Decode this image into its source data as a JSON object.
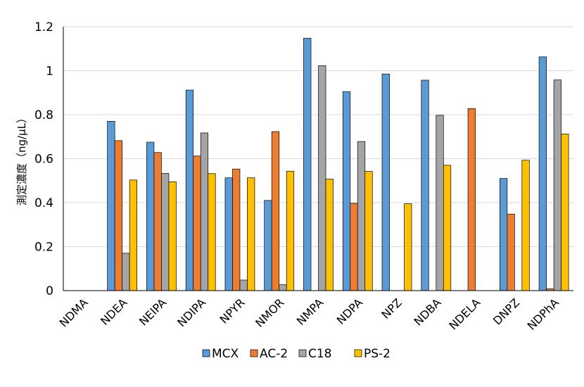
{
  "chart_data": {
    "type": "bar",
    "title": "",
    "xlabel": "",
    "ylabel": "測定濃度（ng/µL）",
    "ylim": [
      0,
      1.2
    ],
    "yticks": [
      0,
      0.2,
      0.4,
      0.6,
      0.8,
      1,
      1.2
    ],
    "ytick_labels": [
      "0",
      "0.2",
      "0.4",
      "0.6",
      "0.8",
      "1",
      "1.2"
    ],
    "grid": true,
    "legend_position": "bottom",
    "categories": [
      "NDMA",
      "NDEA",
      "NEIPA",
      "NDIPA",
      "NPYR",
      "NMOR",
      "NMPA",
      "NDPA",
      "NPZ",
      "NDBA",
      "NDELA",
      "DNPZ",
      "NDPhA"
    ],
    "series": [
      {
        "name": "MCX",
        "color": "#5b9bd5",
        "values": [
          0,
          0.77,
          0.675,
          0.912,
          0.513,
          0.41,
          1.148,
          0.905,
          0.985,
          0.957,
          0,
          0.51,
          1.063
        ]
      },
      {
        "name": "AC-2",
        "color": "#ed7d31",
        "values": [
          0,
          0.682,
          0.628,
          0.612,
          0.553,
          0.723,
          0,
          0.397,
          0,
          0,
          0.828,
          0.348,
          0.008
        ]
      },
      {
        "name": "C18",
        "color": "#a5a5a5",
        "values": [
          0,
          0.17,
          0.533,
          0.717,
          0.048,
          0.027,
          1.023,
          0.678,
          0,
          0.797,
          0,
          0,
          0.958
        ]
      },
      {
        "name": "PS-2",
        "color": "#ffc000",
        "values": [
          0,
          0.503,
          0.495,
          0.532,
          0.513,
          0.543,
          0.507,
          0.542,
          0.395,
          0.57,
          0,
          0.593,
          0.712
        ]
      }
    ]
  }
}
